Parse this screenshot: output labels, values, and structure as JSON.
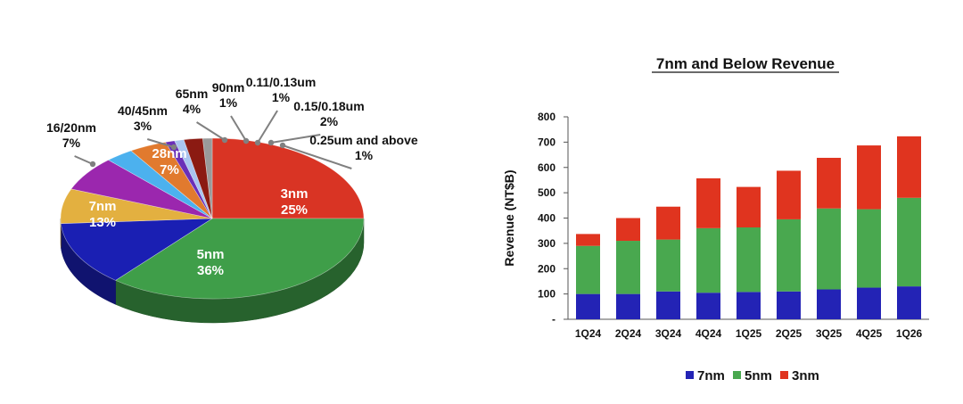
{
  "chart_data": [
    {
      "type": "pie",
      "title": "",
      "slices": [
        {
          "label": "3nm",
          "value": 25,
          "percent_label": "25%",
          "color": "#d93424"
        },
        {
          "label": "5nm",
          "value": 36,
          "percent_label": "36%",
          "color": "#3f9e49"
        },
        {
          "label": "7nm",
          "value": 13,
          "percent_label": "13%",
          "color": "#1a1fb3"
        },
        {
          "label": "16/20nm",
          "value": 7,
          "percent_label": "7%",
          "color": "#e3b040"
        },
        {
          "label": "28nm",
          "value": 7,
          "percent_label": "7%",
          "color": "#9b27ae"
        },
        {
          "label": "40/45nm",
          "value": 3,
          "percent_label": "3%",
          "color": "#4cb1ee"
        },
        {
          "label": "65nm",
          "value": 4,
          "percent_label": "4%",
          "color": "#e17a2e"
        },
        {
          "label": "90nm",
          "value": 1,
          "percent_label": "1%",
          "color": "#6a2fb8"
        },
        {
          "label": "0.11/0.13um",
          "value": 1,
          "percent_label": "1%",
          "color": "#a9c4ef"
        },
        {
          "label": "0.15/0.18um",
          "value": 2,
          "percent_label": "2%",
          "color": "#8b1a12"
        },
        {
          "label": "0.25um and above",
          "value": 1,
          "percent_label": "1%",
          "color": "#9a9a9a"
        }
      ]
    },
    {
      "type": "bar",
      "stacked": true,
      "title": "7nm and Below Revenue",
      "xlabel": "",
      "ylabel": "Revenue (NT$B)",
      "ylim": [
        0,
        800
      ],
      "yticks": [
        "-",
        "100",
        "200",
        "300",
        "400",
        "500",
        "600",
        "700",
        "800"
      ],
      "categories": [
        "1Q24",
        "2Q24",
        "3Q24",
        "4Q24",
        "1Q25",
        "2Q25",
        "3Q25",
        "4Q25",
        "1Q26"
      ],
      "series": [
        {
          "name": "7nm",
          "color": "#2323b5",
          "values": [
            100,
            100,
            110,
            105,
            108,
            110,
            118,
            125,
            130
          ]
        },
        {
          "name": "5nm",
          "color": "#49a84f",
          "values": [
            190,
            210,
            205,
            255,
            255,
            285,
            320,
            310,
            350
          ]
        },
        {
          "name": "3nm",
          "color": "#e0341f",
          "values": [
            47,
            90,
            130,
            197,
            160,
            192,
            200,
            252,
            243
          ]
        }
      ],
      "legend_position": "bottom",
      "grid": false
    }
  ]
}
